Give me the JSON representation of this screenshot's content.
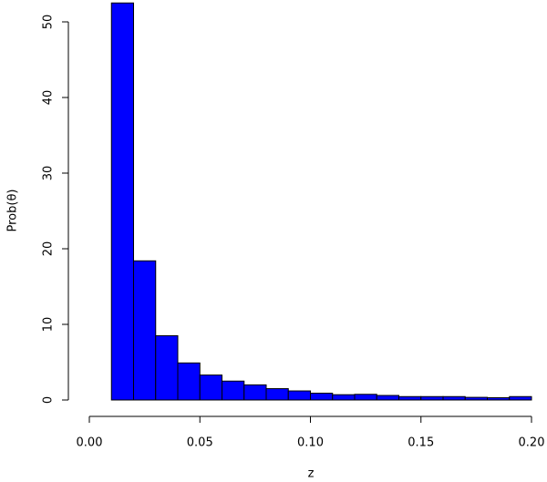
{
  "chart_data": {
    "type": "histogram",
    "xlabel": "z",
    "ylabel": "Prob(θ)",
    "bins": [
      0.01,
      0.02,
      0.03,
      0.04,
      0.05,
      0.06,
      0.07,
      0.08,
      0.09,
      0.1,
      0.11,
      0.12,
      0.13,
      0.14,
      0.15,
      0.16,
      0.17,
      0.18,
      0.19,
      0.2
    ],
    "values": [
      52.5,
      18.4,
      8.5,
      4.9,
      3.3,
      2.5,
      2.0,
      1.5,
      1.2,
      0.9,
      0.7,
      0.75,
      0.6,
      0.45,
      0.45,
      0.45,
      0.35,
      0.3,
      0.45
    ],
    "color": "#0000ff",
    "xlim": [
      0,
      0.2
    ],
    "xticks": [
      {
        "value": 0,
        "label": "0.00"
      },
      {
        "value": 0.05,
        "label": "0.05"
      },
      {
        "value": 0.1,
        "label": "0.10"
      },
      {
        "value": 0.15,
        "label": "0.15"
      },
      {
        "value": 0.2,
        "label": "0.20"
      }
    ],
    "ylim": [
      0,
      50
    ],
    "yticks": [
      0,
      10,
      20,
      30,
      40,
      50
    ],
    "grid": false
  }
}
